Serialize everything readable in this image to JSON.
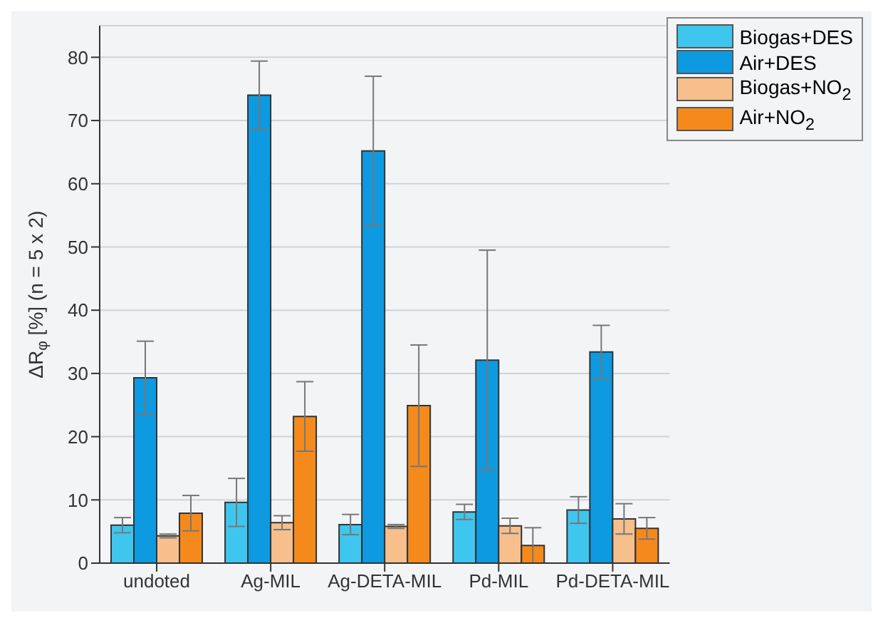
{
  "chart_data": {
    "type": "bar",
    "ylabel": "ΔR$_{φ}$ [%] (n = 5 x 2)",
    "categories": [
      "undoted",
      "Ag-MIL",
      "Ag-DETA-MIL",
      "Pd-MIL",
      "Pd-DETA-MIL"
    ],
    "series": [
      {
        "name": "Biogas+DES",
        "color": "#3fc6ee",
        "values": [
          6.0,
          9.6,
          6.1,
          8.1,
          8.4
        ],
        "errors": [
          1.2,
          3.8,
          1.6,
          1.2,
          2.1
        ]
      },
      {
        "name": "Air+DES",
        "color": "#0e9ae0",
        "values": [
          29.3,
          74.0,
          65.2,
          32.1,
          33.4
        ],
        "errors": [
          5.8,
          5.4,
          11.8,
          17.4,
          4.2
        ]
      },
      {
        "name": "Biogas+NO$_{2}$",
        "color": "#f6bf8c",
        "values": [
          4.3,
          6.4,
          5.8,
          5.9,
          7.0
        ],
        "errors": [
          0.3,
          1.1,
          0.3,
          1.2,
          2.4
        ]
      },
      {
        "name": "Air+NO$_{2}$",
        "color": "#f48a1c",
        "values": [
          7.9,
          23.2,
          24.9,
          2.8,
          5.5
        ],
        "errors": [
          2.8,
          5.5,
          9.6,
          2.8,
          1.7
        ]
      }
    ],
    "ylim": [
      0,
      85
    ],
    "yticks": [
      0,
      10,
      20,
      30,
      40,
      50,
      60,
      70,
      80
    ],
    "grid": "y",
    "legend": "top right"
  }
}
